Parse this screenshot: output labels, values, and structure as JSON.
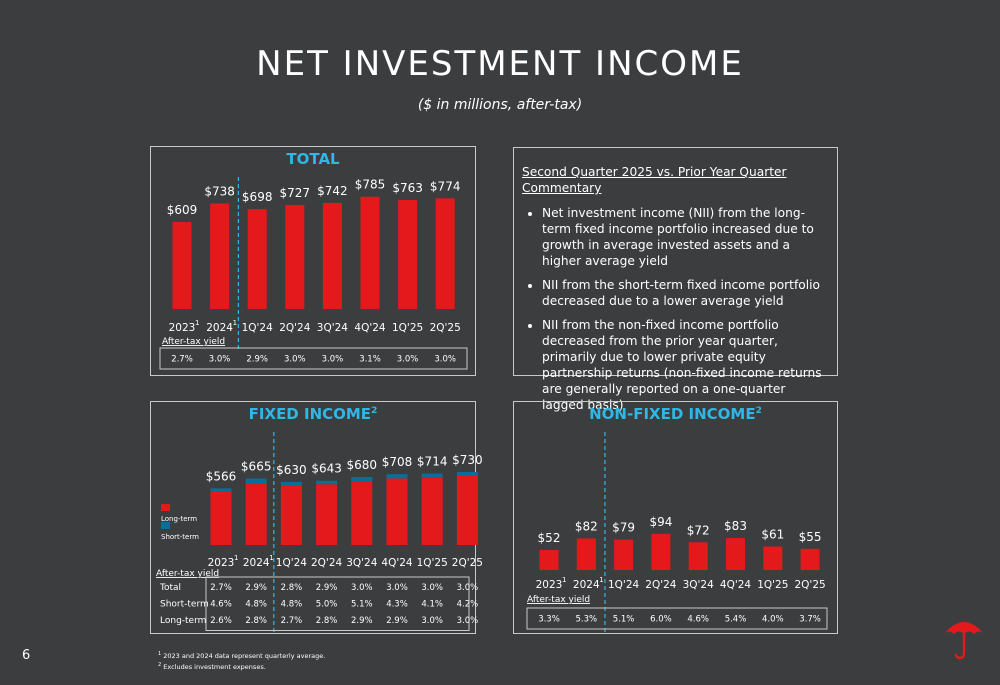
{
  "page": {
    "title": "NET INVESTMENT INCOME",
    "subtitle": "($ in millions, after-tax)",
    "page_number": "6",
    "footnotes": [
      {
        "mark": "1",
        "text": "2023 and 2024 data represent quarterly average."
      },
      {
        "mark": "2",
        "text": "Excludes investment expenses."
      }
    ]
  },
  "commentary": {
    "heading": "Second Quarter 2025 vs. Prior Year Quarter Commentary",
    "bullets": [
      "Net investment income (NII) from the long-term fixed income portfolio increased due to growth in average invested assets and a higher average yield",
      "NII from the short-term fixed income portfolio decreased due to a lower average yield",
      "NII from the non-fixed income portfolio decreased from the prior year quarter, primarily due to lower private equity partnership returns (non-fixed income returns are generally reported on a one-quarter lagged basis)"
    ]
  },
  "colors": {
    "red": "#e3191c",
    "blue": "#0a6f96",
    "accent": "#2fb7e6",
    "background": "#3c3d3f"
  },
  "chart_data": [
    {
      "type": "bar",
      "title": "TOTAL",
      "categories": [
        "2023",
        "2024",
        "1Q'24",
        "2Q'24",
        "3Q'24",
        "4Q'24",
        "1Q'25",
        "2Q'25"
      ],
      "category_marks": [
        "1",
        "1",
        "",
        "",
        "",
        "",
        "",
        ""
      ],
      "values": [
        609,
        738,
        698,
        727,
        742,
        785,
        763,
        774
      ],
      "value_labels": [
        "$609",
        "$738",
        "$698",
        "$727",
        "$742",
        "$785",
        "$763",
        "$774"
      ],
      "yield_label": "After-tax yield",
      "yield_rows": [
        {
          "label": "",
          "values": [
            "2.7%",
            "3.0%",
            "2.9%",
            "3.0%",
            "3.0%",
            "3.1%",
            "3.0%",
            "3.0%"
          ]
        }
      ]
    },
    {
      "type": "bar",
      "stacked": true,
      "title": "FIXED INCOME",
      "title_mark": "2",
      "categories": [
        "2023",
        "2024",
        "1Q'24",
        "2Q'24",
        "3Q'24",
        "4Q'24",
        "1Q'25",
        "2Q'25"
      ],
      "category_marks": [
        "1",
        "1",
        "",
        "",
        "",
        "",
        "",
        ""
      ],
      "series": [
        {
          "name": "Long-term",
          "values": [
            531,
            619,
            595,
            608,
            636,
            665,
            678,
            699
          ]
        },
        {
          "name": "Short-term",
          "values": [
            35,
            46,
            35,
            35,
            44,
            43,
            36,
            31
          ]
        }
      ],
      "totals": [
        566,
        665,
        630,
        643,
        680,
        708,
        714,
        730
      ],
      "value_labels": [
        "$566",
        "$665",
        "$630",
        "$643",
        "$680",
        "$708",
        "$714",
        "$730"
      ],
      "yield_label": "After-tax yield",
      "yield_rows": [
        {
          "label": "Total",
          "values": [
            "2.7%",
            "2.9%",
            "2.8%",
            "2.9%",
            "3.0%",
            "3.0%",
            "3.0%",
            "3.0%"
          ]
        },
        {
          "label": "Short-term",
          "values": [
            "4.6%",
            "4.8%",
            "4.8%",
            "5.0%",
            "5.1%",
            "4.3%",
            "4.1%",
            "4.2%"
          ]
        },
        {
          "label": "Long-term",
          "values": [
            "2.6%",
            "2.8%",
            "2.7%",
            "2.8%",
            "2.9%",
            "2.9%",
            "3.0%",
            "3.0%"
          ]
        }
      ]
    },
    {
      "type": "bar",
      "title": "NON-FIXED INCOME",
      "title_mark": "2",
      "categories": [
        "2023",
        "2024",
        "1Q'24",
        "2Q'24",
        "3Q'24",
        "4Q'24",
        "1Q'25",
        "2Q'25"
      ],
      "category_marks": [
        "1",
        "1",
        "",
        "",
        "",
        "",
        "",
        ""
      ],
      "values": [
        52,
        82,
        79,
        94,
        72,
        83,
        61,
        55
      ],
      "value_labels": [
        "$52",
        "$82",
        "$79",
        "$94",
        "$72",
        "$83",
        "$61",
        "$55"
      ],
      "yield_label": "After-tax yield",
      "yield_rows": [
        {
          "label": "",
          "values": [
            "3.3%",
            "5.3%",
            "5.1%",
            "6.0%",
            "4.6%",
            "5.4%",
            "4.0%",
            "3.7%"
          ]
        }
      ]
    }
  ]
}
